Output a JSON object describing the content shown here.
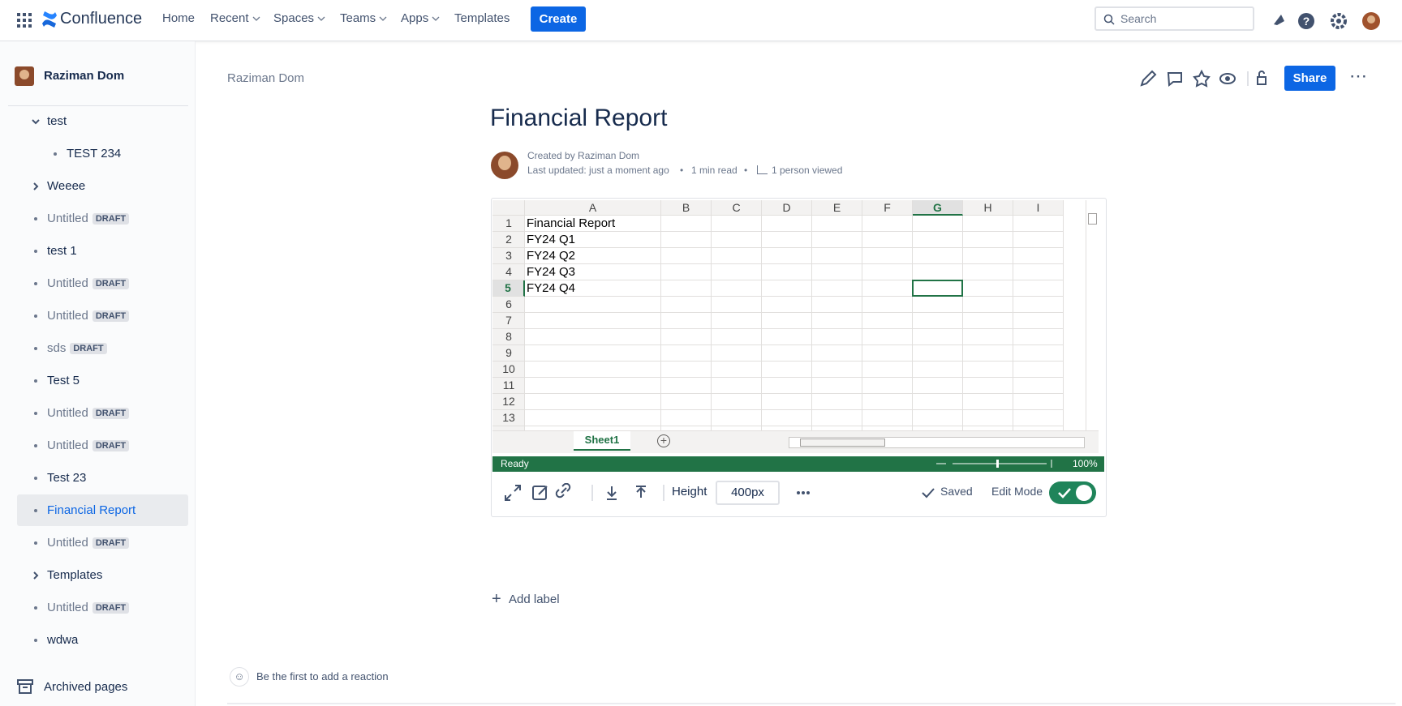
{
  "topbar": {
    "logo": "Confluence",
    "nav": [
      "Home",
      "Recent",
      "Spaces",
      "Teams",
      "Apps",
      "Templates"
    ],
    "create": "Create",
    "search": "Search"
  },
  "sidebar": {
    "space": "Raziman Dom",
    "items": [
      {
        "label": "test",
        "kind": "expanded"
      },
      {
        "label": "TEST 234",
        "kind": "child"
      },
      {
        "label": "Weeee",
        "kind": "collapsed"
      },
      {
        "label": "Untitled",
        "badge": "DRAFT",
        "kind": "bullet"
      },
      {
        "label": "test 1",
        "kind": "bullet"
      },
      {
        "label": "Untitled",
        "badge": "DRAFT",
        "kind": "bullet"
      },
      {
        "label": "Untitled",
        "badge": "DRAFT",
        "kind": "bullet"
      },
      {
        "label": "sds",
        "badge": "DRAFT",
        "kind": "bullet"
      },
      {
        "label": "Test 5",
        "kind": "bullet"
      },
      {
        "label": "Untitled",
        "badge": "DRAFT",
        "kind": "bullet"
      },
      {
        "label": "Untitled",
        "badge": "DRAFT",
        "kind": "bullet"
      },
      {
        "label": "Test 23",
        "kind": "bullet"
      },
      {
        "label": "Financial Report",
        "kind": "bullet",
        "active": true
      },
      {
        "label": "Untitled",
        "badge": "DRAFT",
        "kind": "bullet"
      },
      {
        "label": "Templates",
        "kind": "collapsed"
      },
      {
        "label": "Untitled",
        "badge": "DRAFT",
        "kind": "bullet"
      },
      {
        "label": "wdwa",
        "kind": "bullet"
      }
    ],
    "archived": "Archived pages"
  },
  "page": {
    "breadcrumb": "Raziman Dom",
    "share": "Share",
    "title": "Financial Report",
    "created": "Created by Raziman Dom",
    "updated": "Last updated: just a moment ago",
    "read": "1 min read",
    "viewed": "1 person viewed",
    "add_label": "Add label",
    "reaction": "Be the first to add a reaction"
  },
  "spreadsheet": {
    "columns": [
      "A",
      "B",
      "C",
      "D",
      "E",
      "F",
      "G",
      "H",
      "I"
    ],
    "selected_column": "G",
    "rows": [
      "1",
      "2",
      "3",
      "4",
      "5",
      "6",
      "7",
      "8",
      "9",
      "10",
      "11",
      "12",
      "13"
    ],
    "selected_row": "5",
    "cells": [
      "Financial Report",
      "FY24 Q1",
      "FY24 Q2",
      "FY24 Q3",
      "FY24 Q4"
    ],
    "sheet": "Sheet1",
    "status": "Ready",
    "zoom": "100%"
  },
  "toolbar": {
    "height_label": "Height",
    "height_value": "400px",
    "saved": "Saved",
    "edit_mode": "Edit Mode"
  }
}
